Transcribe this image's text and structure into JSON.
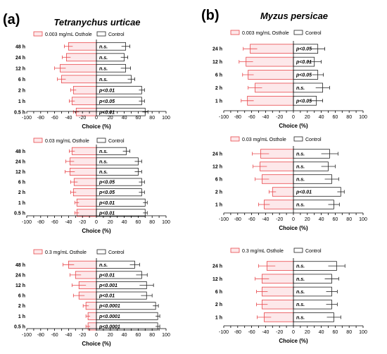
{
  "panels": [
    {
      "id": "a",
      "letter": "(a)",
      "title": "Tetranychus urticae"
    },
    {
      "id": "b",
      "letter": "(b)",
      "title": "Myzus persicae"
    }
  ],
  "colors": {
    "treatment": "#e8484c",
    "treatment_fill": "#fde8ea",
    "control": "#222222",
    "control_fill": "#ffffff",
    "axis": "#000000"
  },
  "chart_data": [
    {
      "type": "bar",
      "orientation": "horizontal-diverging",
      "panel": "a",
      "legend": {
        "treatment": "0.003 mg/mL Osthole",
        "control": "Control"
      },
      "xlabel": "Choice (%)",
      "xlim": [
        -100,
        100
      ],
      "xticks": [
        "-100",
        "-90",
        "-80",
        "-70",
        "-60",
        "-50",
        "-40",
        "-30",
        "-20",
        "-10",
        "0",
        "10",
        "20",
        "30",
        "40",
        "50",
        "60",
        "70",
        "80",
        "90",
        "100"
      ],
      "categories": [
        "48 h",
        "24 h",
        "12 h",
        "6 h",
        "2 h",
        "1 h",
        "0.5 h"
      ],
      "series": [
        {
          "name": "0.003 mg/mL Osthole",
          "values": [
            -40,
            -43,
            -52,
            -50,
            -33,
            -35,
            -29
          ],
          "errors": [
            6,
            6,
            8,
            6,
            4,
            4,
            4
          ]
        },
        {
          "name": "Control",
          "values": [
            42,
            40,
            42,
            50,
            65,
            65,
            70
          ],
          "errors": [
            6,
            5,
            7,
            5,
            4,
            4,
            4
          ]
        }
      ],
      "labels": [
        "n.s.",
        "n.s.",
        "n.s.",
        "n.s.",
        "p<0.01",
        "p<0.05",
        "p<0.01"
      ]
    },
    {
      "type": "bar",
      "orientation": "horizontal-diverging",
      "panel": "a",
      "legend": {
        "treatment": "0.03 mg/mL Osthole",
        "control": "Control"
      },
      "xlabel": "Choice (%)",
      "xlim": [
        -100,
        100
      ],
      "xticks": [
        "-100",
        "-90",
        "-80",
        "-70",
        "-60",
        "-50",
        "-40",
        "-30",
        "-20",
        "-10",
        "0",
        "10",
        "20",
        "30",
        "40",
        "50",
        "60",
        "70",
        "80",
        "90",
        "100"
      ],
      "categories": [
        "48 h",
        "24 h",
        "12 h",
        "6 h",
        "2 h",
        "1 h",
        "0.5 h"
      ],
      "series": [
        {
          "name": "0.03 mg/mL Osthole",
          "values": [
            -35,
            -38,
            -38,
            -32,
            -33,
            -28,
            -28
          ],
          "errors": [
            4,
            6,
            7,
            5,
            4,
            3,
            3
          ]
        },
        {
          "name": "Control",
          "values": [
            43,
            60,
            60,
            65,
            65,
            70,
            70
          ],
          "errors": [
            5,
            5,
            5,
            4,
            4,
            3,
            3
          ]
        }
      ],
      "labels": [
        "n.s.",
        "n.s.",
        "n.s.",
        "p<0.05",
        "p<0.05",
        "p<0.01",
        "p<0.01"
      ]
    },
    {
      "type": "bar",
      "orientation": "horizontal-diverging",
      "panel": "a",
      "legend": {
        "treatment": "0.3 mg/mL Osthole",
        "control": "Control"
      },
      "xlabel": "Choice (%)",
      "xlim": [
        -100,
        100
      ],
      "xticks": [
        "-100",
        "-90",
        "-80",
        "-70",
        "-60",
        "-50",
        "-40",
        "-30",
        "-20",
        "-10",
        "0",
        "10",
        "20",
        "30",
        "40",
        "50",
        "60",
        "70",
        "80",
        "90",
        "100"
      ],
      "categories": [
        "48 h",
        "24 h",
        "12 h",
        "6 h",
        "2 h",
        "1 h",
        "0.5 h"
      ],
      "series": [
        {
          "name": "0.3 mg/mL Osthole",
          "values": [
            -40,
            -30,
            -25,
            -25,
            -15,
            -12,
            -12
          ],
          "errors": [
            8,
            8,
            10,
            8,
            4,
            3,
            3
          ]
        },
        {
          "name": "Control",
          "values": [
            55,
            65,
            72,
            72,
            85,
            88,
            88
          ],
          "errors": [
            7,
            8,
            10,
            8,
            4,
            3,
            3
          ]
        }
      ],
      "labels": [
        "n.s.",
        "p<0.01",
        "p<0.001",
        "p<0.01",
        "p<0.0001",
        "p<0.0001",
        "p<0.0001"
      ]
    },
    {
      "type": "bar",
      "orientation": "horizontal-diverging",
      "panel": "b",
      "legend": {
        "treatment": "0.003 mg/mL Osthole",
        "control": "Control"
      },
      "xlabel": "Choice (%)",
      "xlim": [
        -100,
        100
      ],
      "xticks": [
        "-100",
        "-90",
        "-80",
        "-70",
        "-60",
        "-50",
        "-40",
        "-30",
        "-20",
        "-10",
        "0",
        "10",
        "20",
        "30",
        "40",
        "50",
        "60",
        "70",
        "80",
        "90",
        "100"
      ],
      "categories": [
        "24 h",
        "12 h",
        "6 h",
        "2 h",
        "1 h"
      ],
      "series": [
        {
          "name": "0.003 mg/mL Osthole",
          "values": [
            -62,
            -68,
            -65,
            -55,
            -66
          ],
          "errors": [
            10,
            10,
            8,
            10,
            9
          ]
        },
        {
          "name": "Control",
          "values": [
            35,
            30,
            35,
            42,
            33
          ],
          "errors": [
            10,
            10,
            8,
            10,
            9
          ]
        }
      ],
      "labels": [
        "p<0.05",
        "p<0.01",
        "p<0.05",
        "n.s.",
        "p<0.05"
      ]
    },
    {
      "type": "bar",
      "orientation": "horizontal-diverging",
      "panel": "b",
      "legend": {
        "treatment": "0.03 mg/mL Osthole",
        "control": "Control"
      },
      "xlabel": "Choice (%)",
      "xlim": [
        -100,
        100
      ],
      "xticks": [
        "-100",
        "-90",
        "-80",
        "-70",
        "-60",
        "-50",
        "-40",
        "-30",
        "-20",
        "-10",
        "0",
        "10",
        "20",
        "30",
        "40",
        "50",
        "60",
        "70",
        "80",
        "90",
        "100"
      ],
      "categories": [
        "24 h",
        "12 h",
        "6 h",
        "2 h",
        "1 h"
      ],
      "series": [
        {
          "name": "0.03 mg/mL Osthole",
          "values": [
            -47,
            -48,
            -45,
            -30,
            -42
          ],
          "errors": [
            12,
            10,
            10,
            5,
            8
          ]
        },
        {
          "name": "Control",
          "values": [
            52,
            50,
            55,
            68,
            58
          ],
          "errors": [
            12,
            10,
            10,
            5,
            8
          ]
        }
      ],
      "labels": [
        "n.s.",
        "n.s.",
        "n.s.",
        "p<0.01",
        "n.s."
      ]
    },
    {
      "type": "bar",
      "orientation": "horizontal-diverging",
      "panel": "b",
      "legend": {
        "treatment": "0.3 mg/mL Osthole",
        "control": "Control"
      },
      "xlabel": "Choice (%)",
      "xlim": [
        -100,
        100
      ],
      "xticks": [
        "-100",
        "-90",
        "-80",
        "-70",
        "-60",
        "-50",
        "-40",
        "-30",
        "-20",
        "-10",
        "0",
        "10",
        "20",
        "30",
        "40",
        "50",
        "60",
        "70",
        "80",
        "90",
        "100"
      ],
      "categories": [
        "24 h",
        "12 h",
        "6 h",
        "2 h",
        "1 h"
      ],
      "series": [
        {
          "name": "0.3 mg/mL Osthole",
          "values": [
            -38,
            -45,
            -45,
            -45,
            -42
          ],
          "errors": [
            12,
            10,
            8,
            8,
            10
          ]
        },
        {
          "name": "Control",
          "values": [
            62,
            55,
            55,
            55,
            58
          ],
          "errors": [
            12,
            10,
            8,
            8,
            10
          ]
        }
      ],
      "labels": [
        "n.s.",
        "n.s.",
        "n.s.",
        "n.s.",
        "n.s."
      ]
    }
  ]
}
